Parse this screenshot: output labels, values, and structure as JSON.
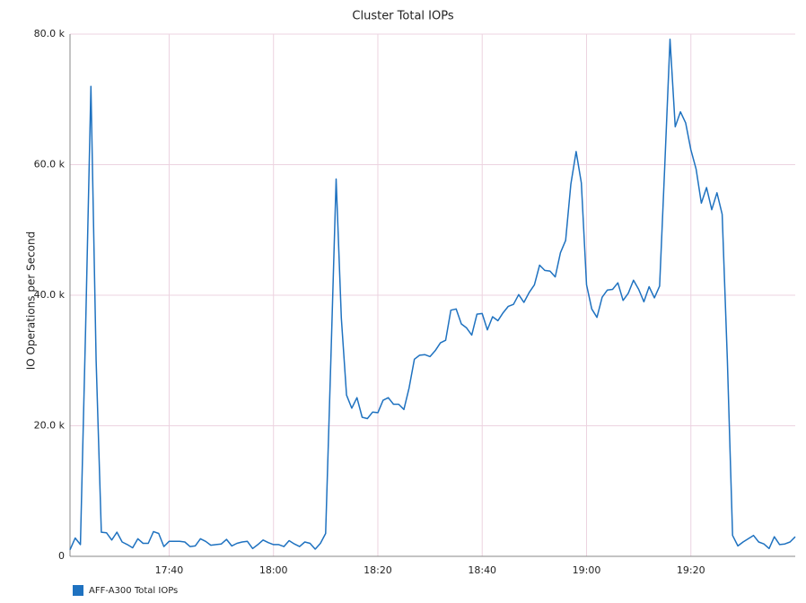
{
  "chart_data": {
    "type": "line",
    "title": "Cluster Total IOPs",
    "y_label": "IO Operations per Second",
    "x": [
      "17:21",
      "17:22",
      "17:23",
      "17:24",
      "17:25",
      "17:26",
      "17:27",
      "17:28",
      "17:29",
      "17:30",
      "17:31",
      "17:32",
      "17:33",
      "17:34",
      "17:35",
      "17:36",
      "17:37",
      "17:38",
      "17:39",
      "17:40",
      "17:41",
      "17:42",
      "17:43",
      "17:44",
      "17:45",
      "17:46",
      "17:47",
      "17:48",
      "17:49",
      "17:50",
      "17:51",
      "17:52",
      "17:53",
      "17:54",
      "17:55",
      "17:56",
      "17:57",
      "17:58",
      "17:59",
      "18:00",
      "18:01",
      "18:02",
      "18:03",
      "18:04",
      "18:05",
      "18:06",
      "18:07",
      "18:08",
      "18:09",
      "18:10",
      "18:11",
      "18:12",
      "18:13",
      "18:14",
      "18:15",
      "18:16",
      "18:17",
      "18:18",
      "18:19",
      "18:20",
      "18:21",
      "18:22",
      "18:23",
      "18:24",
      "18:25",
      "18:26",
      "18:27",
      "18:28",
      "18:29",
      "18:30",
      "18:31",
      "18:32",
      "18:33",
      "18:34",
      "18:35",
      "18:36",
      "18:37",
      "18:38",
      "18:39",
      "18:40",
      "18:41",
      "18:42",
      "18:43",
      "18:44",
      "18:45",
      "18:46",
      "18:47",
      "18:48",
      "18:49",
      "18:50",
      "18:51",
      "18:52",
      "18:53",
      "18:54",
      "18:55",
      "18:56",
      "18:57",
      "18:58",
      "18:59",
      "19:00",
      "19:01",
      "19:02",
      "19:03",
      "19:04",
      "19:05",
      "19:06",
      "19:07",
      "19:08",
      "19:09",
      "19:10",
      "19:11",
      "19:12",
      "19:13",
      "19:14",
      "19:15",
      "19:16",
      "19:17",
      "19:18",
      "19:19",
      "19:20",
      "19:21",
      "19:22",
      "19:23",
      "19:24",
      "19:25",
      "19:26",
      "19:27",
      "19:28",
      "19:29",
      "19:30",
      "19:31",
      "19:32",
      "19:33",
      "19:34",
      "19:35",
      "19:36",
      "19:37",
      "19:38",
      "19:39",
      "19:40"
    ],
    "series": [
      {
        "name": "AFF-A300 Total IOPs",
        "color": "#1f72c0",
        "values": [
          1000,
          2800,
          1800,
          35000,
          72000,
          30000,
          3700,
          3600,
          2500,
          3700,
          2200,
          1800,
          1300,
          2700,
          2000,
          2000,
          3800,
          3500,
          1500,
          2300,
          2300,
          2300,
          2200,
          1500,
          1600,
          2700,
          2300,
          1700,
          1800,
          1900,
          2600,
          1600,
          2000,
          2200,
          2300,
          1200,
          1800,
          2500,
          2100,
          1800,
          1800,
          1500,
          2400,
          1900,
          1500,
          2200,
          2000,
          1100,
          2000,
          3500,
          30000,
          57800,
          36500,
          24700,
          22700,
          24300,
          21300,
          21100,
          22100,
          22000,
          23900,
          24300,
          23300,
          23300,
          22500,
          25800,
          30200,
          30800,
          30900,
          30600,
          31500,
          32700,
          33100,
          37700,
          37900,
          35600,
          35000,
          33900,
          37100,
          37200,
          34700,
          36700,
          36100,
          37300,
          38300,
          38600,
          40100,
          38900,
          40400,
          41600,
          44600,
          43800,
          43700,
          42800,
          46500,
          48400,
          57000,
          62000,
          57200,
          41600,
          37900,
          36600,
          39700,
          40800,
          40900,
          41900,
          39200,
          40300,
          42300,
          40900,
          39000,
          41300,
          39600,
          41400,
          60000,
          79200,
          65800,
          68100,
          66400,
          62300,
          59300,
          54100,
          56500,
          53100,
          55700,
          52400,
          30000,
          3200,
          1600,
          2200,
          2700,
          3200,
          2200,
          1900,
          1200,
          3000,
          1800,
          1900,
          2200,
          3000
        ]
      }
    ],
    "xlim": [
      "17:21",
      "19:40"
    ],
    "xticks": [
      "17:40",
      "18:00",
      "18:20",
      "18:40",
      "19:00",
      "19:20"
    ],
    "ylim": [
      0,
      80000
    ],
    "yticks": [
      0,
      {
        "value": 20000,
        "label": "20.0 k"
      },
      {
        "value": 40000,
        "label": "40.0 k"
      },
      {
        "value": 60000,
        "label": "60.0 k"
      },
      {
        "value": 80000,
        "label": "80.0 k"
      }
    ],
    "grid": true,
    "legend": "bottom-left"
  }
}
